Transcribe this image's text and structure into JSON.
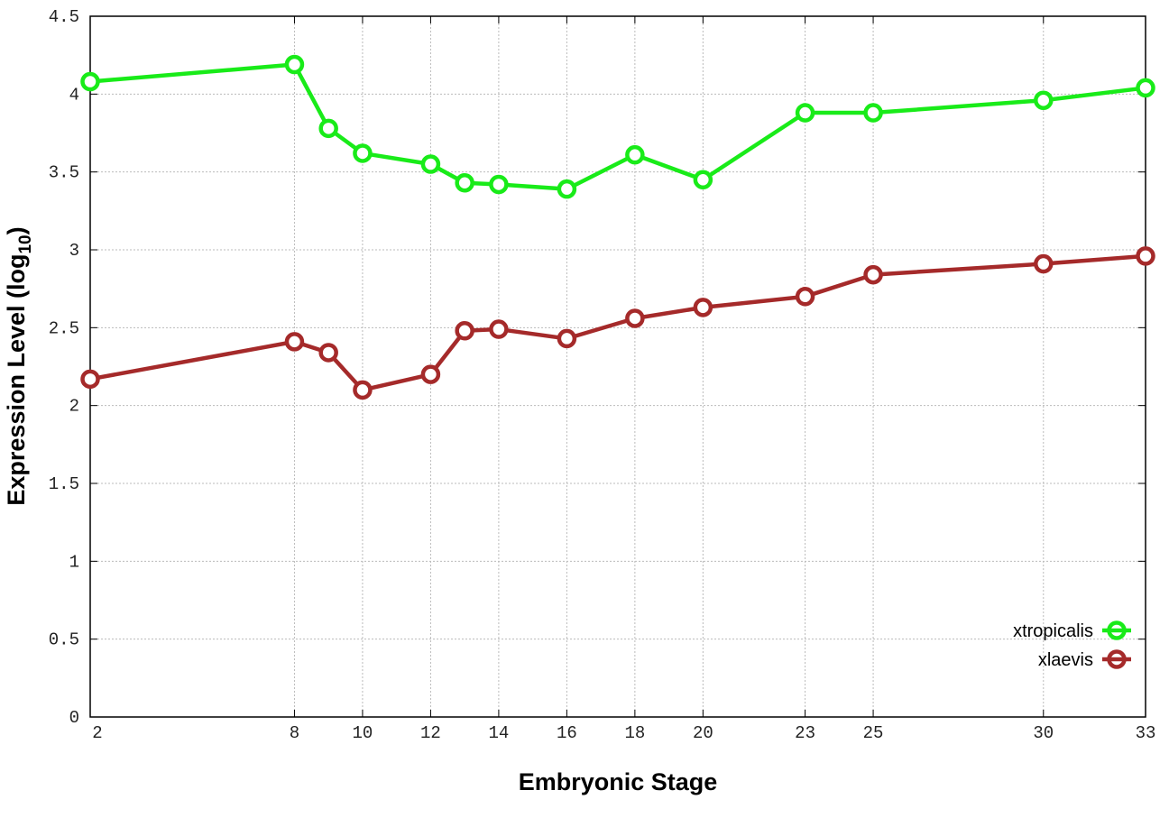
{
  "chart_data": {
    "type": "line",
    "title": "",
    "xlabel": "Embryonic Stage",
    "ylabel_main": "Expression Level (log",
    "ylabel_sub": "10",
    "ylabel_close": ")",
    "x": [
      2,
      8,
      9,
      10,
      12,
      13,
      14,
      16,
      18,
      20,
      23,
      25,
      30,
      33
    ],
    "xticks": [
      2,
      8,
      10,
      12,
      14,
      16,
      18,
      20,
      23,
      25,
      30,
      33
    ],
    "xlim": [
      2,
      33
    ],
    "ylim": [
      0,
      4.5
    ],
    "yticks": [
      "0",
      "0.5",
      "1",
      "1.5",
      "2",
      "2.5",
      "3",
      "3.5",
      "4",
      "4.5"
    ],
    "grid": true,
    "legend_position": "bottom-right",
    "series": [
      {
        "name": "xtropicalis",
        "color": "#19eb19",
        "values": [
          4.08,
          4.19,
          3.78,
          3.62,
          3.55,
          3.43,
          3.42,
          3.39,
          3.61,
          3.45,
          3.88,
          3.88,
          3.96,
          4.04
        ]
      },
      {
        "name": "xlaevis",
        "color": "#a52a2a",
        "values": [
          2.17,
          2.41,
          2.34,
          2.1,
          2.2,
          2.48,
          2.49,
          2.43,
          2.56,
          2.63,
          2.7,
          2.84,
          2.91,
          2.96
        ]
      }
    ]
  }
}
